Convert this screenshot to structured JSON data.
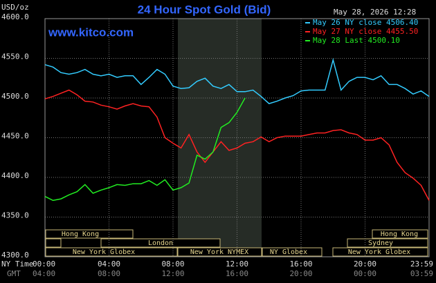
{
  "chart_data": {
    "type": "line",
    "title": "24 Hour Spot Gold (Bid)",
    "unit_label": "USD/oz",
    "timestamp": "May 28, 2026 12:28",
    "site": "www.kitco.com",
    "x_axis_label": "NY Time",
    "x2_axis_label": "GMT",
    "x": [
      0,
      0.5,
      1,
      1.5,
      2,
      2.5,
      3,
      3.5,
      4,
      4.5,
      5,
      5.5,
      6,
      6.5,
      7,
      7.5,
      8,
      8.5,
      9,
      9.5,
      10,
      10.5,
      11,
      11.5,
      12,
      12.5,
      13,
      13.5,
      14,
      14.5,
      15,
      15.5,
      16,
      16.5,
      17,
      17.5,
      18,
      18.5,
      19,
      19.5,
      20,
      20.5,
      21,
      21.5,
      22,
      22.5,
      23,
      23.5,
      24
    ],
    "xlim": [
      0,
      24
    ],
    "xticks": [
      {
        "value": 0,
        "label": "00:00"
      },
      {
        "value": 4,
        "label": "04:00"
      },
      {
        "value": 8,
        "label": "08:00"
      },
      {
        "value": 12,
        "label": "12:00"
      },
      {
        "value": 16,
        "label": "16:00"
      },
      {
        "value": 20,
        "label": "20:00"
      },
      {
        "value": 24,
        "label": "23:59"
      }
    ],
    "x2tick_labels": [
      "04:00",
      "08:00",
      "12:00",
      "16:00",
      "20:00",
      "00:00",
      "03:59"
    ],
    "ylim": [
      4300,
      4600
    ],
    "yticks": [
      {
        "value": 4300,
        "label": "4300.0"
      },
      {
        "value": 4350,
        "label": "4350.0"
      },
      {
        "value": 4400,
        "label": "4400.0"
      },
      {
        "value": 4450,
        "label": "4450.0"
      },
      {
        "value": 4500,
        "label": "4500.0"
      },
      {
        "value": 4550,
        "label": "4550.0"
      },
      {
        "value": 4600,
        "label": "4600.0"
      }
    ],
    "grid": true,
    "legend": "top-right",
    "sessions": [
      "Hong Kong",
      "London",
      "New York Globex",
      "New York NYMEX",
      "NY Globex",
      "Hong Kong",
      "Sydney",
      "New York Globex"
    ],
    "series": [
      {
        "name": "May 26 NY close 4506.40",
        "color": "#33ccff",
        "values": [
          4542,
          4539,
          4532,
          4530,
          4532,
          4536,
          4530,
          4528,
          4530,
          4526,
          4528,
          4528,
          4517,
          4526,
          4536,
          4530,
          4515,
          4512,
          4513,
          4521,
          4525,
          4515,
          4512,
          4517,
          4508,
          4508,
          4510,
          4502,
          4493,
          4496,
          4500,
          4503,
          4509,
          4510,
          4510,
          4510,
          4548,
          4510,
          4521,
          4526,
          4526,
          4523,
          4528,
          4517,
          4517,
          4512,
          4505,
          4509,
          4502
        ]
      },
      {
        "name": "May 27 NY close 4455.50",
        "color": "#ff2222",
        "values": [
          4499,
          4502,
          4506,
          4510,
          4504,
          4496,
          4495,
          4491,
          4489,
          4486,
          4490,
          4493,
          4490,
          4489,
          4476,
          4450,
          4443,
          4437,
          4454,
          4432,
          4419,
          4432,
          4445,
          4434,
          4437,
          4443,
          4445,
          4451,
          4445,
          4450,
          4452,
          4452,
          4452,
          4454,
          4456,
          4456,
          4459,
          4460,
          4456,
          4454,
          4447,
          4447,
          4450,
          4441,
          4419,
          4406,
          4399,
          4390,
          4371
        ]
      },
      {
        "name": "May 28 Last 4500.10",
        "color": "#22ee22",
        "values": [
          4376,
          4371,
          4373,
          4378,
          4382,
          4391,
          4380,
          4384,
          4387,
          4391,
          4390,
          4392,
          4392,
          4396,
          4390,
          4397,
          4384,
          4387,
          4393,
          4428,
          4423,
          4432,
          4463,
          4469,
          4482,
          4500.1,
          null,
          null,
          null,
          null,
          null,
          null,
          null,
          null,
          null,
          null,
          null,
          null,
          null,
          null,
          null,
          null,
          null,
          null,
          null,
          null,
          null,
          null,
          null
        ]
      }
    ]
  }
}
